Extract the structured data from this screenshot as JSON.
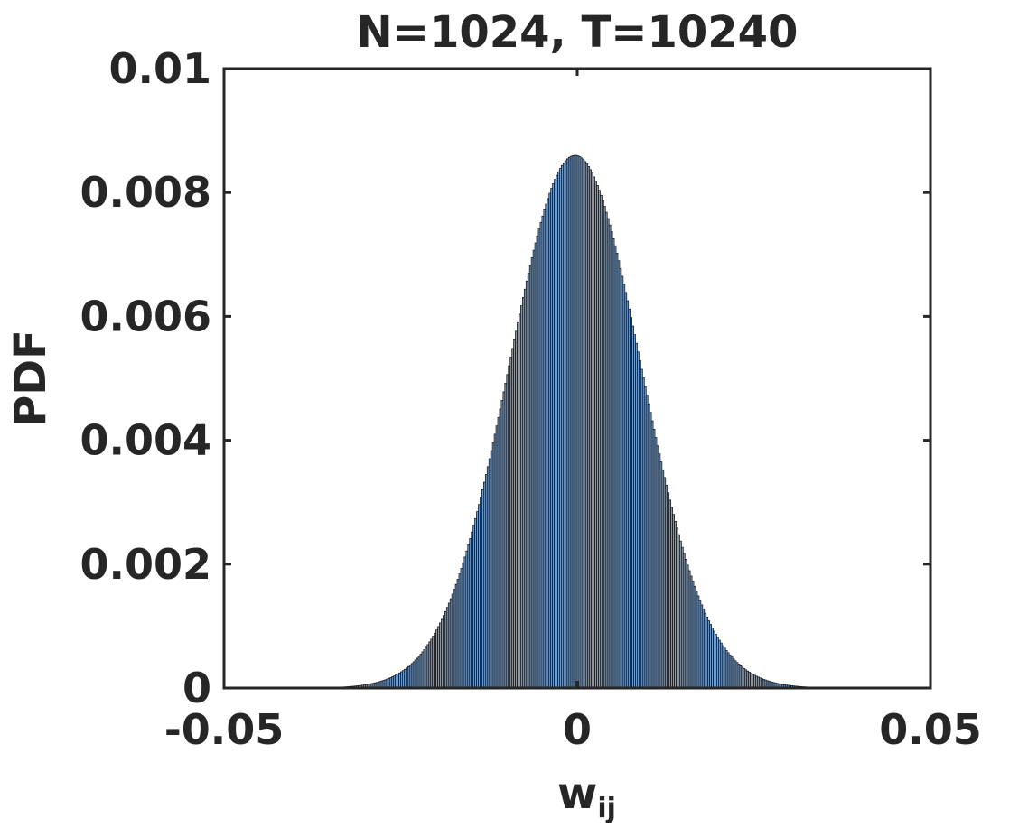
{
  "chart_data": {
    "type": "bar",
    "title": "N=1024, T=10240",
    "xlabel": "w",
    "xlabel_subscript": "ij",
    "ylabel": "PDF",
    "xlim": [
      -0.05,
      0.05
    ],
    "ylim": [
      0,
      0.01
    ],
    "x_ticks": [
      -0.05,
      0,
      0.05
    ],
    "x_tick_labels": [
      "-0.05",
      "0",
      "0.05"
    ],
    "y_ticks": [
      0,
      0.002,
      0.004,
      0.006,
      0.008,
      0.01
    ],
    "y_tick_labels": [
      "0",
      "0.002",
      "0.004",
      "0.006",
      "0.008",
      "0.01"
    ],
    "grid": false,
    "bar_color": "#6f9ccf",
    "edge_color": "#1a1a1a",
    "distribution": {
      "center": -0.0003,
      "peak": 0.0086,
      "spread": 0.0093
    },
    "bin_width": 0.00025,
    "bins_range": [
      -0.04,
      0.04
    ]
  }
}
